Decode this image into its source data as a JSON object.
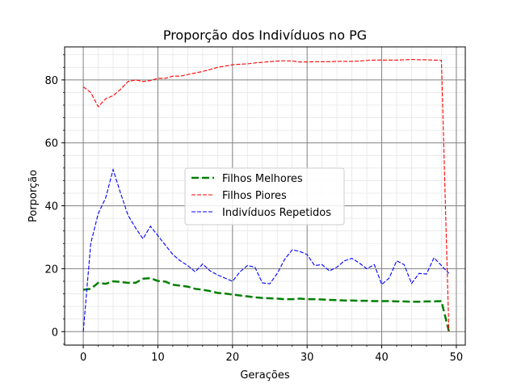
{
  "chart_data": {
    "type": "line",
    "title": "Proporção dos Indivíduos no PG",
    "xlabel": "Gerações",
    "ylabel": "Porporção",
    "xlim": [
      -2.5,
      51.2
    ],
    "ylim": [
      -4.3,
      90.5
    ],
    "xticks": [
      0,
      10,
      20,
      30,
      40,
      50
    ],
    "yticks": [
      0,
      20,
      40,
      60,
      80
    ],
    "grid": true,
    "legend_position": "center",
    "x": [
      0,
      1,
      2,
      3,
      4,
      5,
      6,
      7,
      8,
      9,
      10,
      11,
      12,
      13,
      14,
      15,
      16,
      17,
      18,
      19,
      20,
      21,
      22,
      23,
      24,
      25,
      26,
      27,
      28,
      29,
      30,
      31,
      32,
      33,
      34,
      35,
      36,
      37,
      38,
      39,
      40,
      41,
      42,
      43,
      44,
      45,
      46,
      47,
      48,
      49
    ],
    "series": [
      {
        "name": "Filhos Melhores",
        "color": "#008000",
        "style": "dashed-thick",
        "values": [
          13.3,
          13.6,
          15.5,
          15.2,
          16.0,
          15.8,
          15.5,
          15.5,
          16.8,
          17.0,
          16.1,
          15.9,
          14.9,
          14.6,
          14.3,
          13.6,
          13.3,
          12.9,
          12.3,
          12.1,
          11.8,
          11.5,
          11.2,
          10.9,
          10.7,
          10.6,
          10.5,
          10.3,
          10.3,
          10.5,
          10.3,
          10.3,
          10.2,
          10.1,
          10.0,
          9.9,
          9.9,
          9.8,
          9.8,
          9.7,
          9.7,
          9.7,
          9.6,
          9.6,
          9.5,
          9.5,
          9.6,
          9.6,
          9.7,
          0.1
        ]
      },
      {
        "name": "Filhos Piores",
        "color": "#ff0000",
        "style": "dashed",
        "values": [
          77.8,
          76.0,
          71.5,
          74.0,
          75.0,
          77.0,
          79.5,
          80.0,
          79.5,
          79.8,
          80.5,
          80.5,
          81.2,
          81.2,
          81.7,
          82.2,
          82.7,
          83.3,
          84.0,
          84.4,
          84.8,
          85.0,
          85.1,
          85.4,
          85.6,
          85.8,
          86.0,
          86.1,
          86.0,
          85.7,
          85.7,
          85.8,
          85.8,
          85.8,
          85.9,
          85.9,
          85.9,
          86.0,
          86.2,
          86.3,
          86.3,
          86.3,
          86.3,
          86.4,
          86.5,
          86.4,
          86.4,
          86.3,
          86.2,
          0.2
        ]
      },
      {
        "name": "Indivíduos Repetidos",
        "color": "#0000ff",
        "style": "dashed",
        "values": [
          0.0,
          28.0,
          37.5,
          42.5,
          51.5,
          44.0,
          37.0,
          33.0,
          29.5,
          33.5,
          30.5,
          27.5,
          24.5,
          22.5,
          21.0,
          19.0,
          21.5,
          19.3,
          18.0,
          17.0,
          16.0,
          19.0,
          21.0,
          20.5,
          15.5,
          15.2,
          18.5,
          23.0,
          26.0,
          25.5,
          24.5,
          21.0,
          21.3,
          19.3,
          20.5,
          22.5,
          23.3,
          21.8,
          20.0,
          21.3,
          15.0,
          17.0,
          22.5,
          21.3,
          15.3,
          18.5,
          18.3,
          23.5,
          21.0,
          18.5
        ]
      }
    ]
  }
}
